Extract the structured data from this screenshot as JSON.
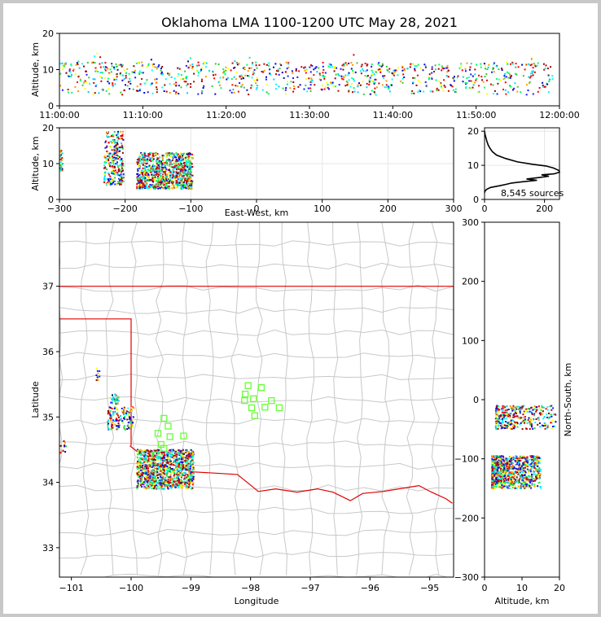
{
  "title": "Oklahoma LMA 1100-1200 UTC May 28, 2021",
  "chart_data": [
    {
      "panel": "time-height",
      "type": "scatter",
      "xlabel": "",
      "ylabel": "Altitude, km",
      "x_ticks": [
        "11:00:00",
        "11:10:00",
        "11:20:00",
        "11:30:00",
        "11:40:00",
        "11:50:00",
        "12:00:00"
      ],
      "y_ticks": [
        "0",
        "10",
        "20"
      ],
      "ylim": [
        0,
        20
      ],
      "source_altitude_range_km": [
        3,
        12
      ]
    },
    {
      "panel": "east-west-height",
      "type": "scatter",
      "xlabel": "East-West, km",
      "ylabel": "Altitude, km",
      "x_ticks": [
        "-300",
        "-200",
        "-100",
        "0",
        "100",
        "200",
        "300"
      ],
      "y_ticks": [
        "0",
        "10",
        "20"
      ],
      "xlim": [
        -300,
        300
      ],
      "ylim": [
        0,
        20
      ],
      "clusters": [
        {
          "x_range": [
            -300,
            -295
          ],
          "alt_range": [
            8,
            14
          ]
        },
        {
          "x_range": [
            -232,
            -202
          ],
          "alt_range": [
            4,
            19
          ]
        },
        {
          "x_range": [
            -182,
            -97
          ],
          "alt_range": [
            3,
            13
          ]
        }
      ]
    },
    {
      "panel": "altitude-histogram",
      "type": "line",
      "x_ticks": [
        "0",
        "200"
      ],
      "y_ticks": [
        "0",
        "10",
        "20"
      ],
      "xlim": [
        0,
        250
      ],
      "ylim": [
        0,
        21
      ],
      "annotation": "8,545 sources",
      "profile": [
        [
          0,
          20
        ],
        [
          2,
          19
        ],
        [
          5,
          18
        ],
        [
          8,
          17
        ],
        [
          12,
          16
        ],
        [
          18,
          15
        ],
        [
          26,
          14
        ],
        [
          40,
          13
        ],
        [
          70,
          12
        ],
        [
          110,
          11
        ],
        [
          160,
          10.3
        ],
        [
          205,
          9.8
        ],
        [
          230,
          9.2
        ],
        [
          248,
          8.5
        ],
        [
          250,
          8
        ],
        [
          232,
          7.5
        ],
        [
          190,
          7.2
        ],
        [
          215,
          6.8
        ],
        [
          180,
          6.4
        ],
        [
          140,
          6
        ],
        [
          175,
          5.6
        ],
        [
          130,
          5.2
        ],
        [
          90,
          4.8
        ],
        [
          70,
          4.4
        ],
        [
          50,
          4
        ],
        [
          20,
          3.5
        ],
        [
          8,
          3
        ],
        [
          2,
          2.5
        ],
        [
          0,
          2
        ]
      ]
    },
    {
      "panel": "plan-view",
      "type": "scatter",
      "xlabel": "Longitude",
      "ylabel": "Latitude",
      "x_ticks": [
        "−101",
        "−100",
        "−99",
        "−98",
        "−97",
        "−96",
        "−95"
      ],
      "y_ticks": [
        "33",
        "34",
        "35",
        "36",
        "37"
      ],
      "xlim": [
        -101.2,
        -94.6
      ],
      "ylim": [
        32.55,
        37.98
      ],
      "clusters": [
        {
          "lon": [
            -100.58,
            -100.52
          ],
          "lat": [
            35.55,
            35.75
          ]
        },
        {
          "lon": [
            -100.35,
            -100.2
          ],
          "lat": [
            35.2,
            35.35
          ]
        },
        {
          "lon": [
            -100.4,
            -99.95
          ],
          "lat": [
            34.8,
            35.15
          ]
        },
        {
          "lon": [
            -101.18,
            -101.08
          ],
          "lat": [
            34.45,
            34.65
          ]
        },
        {
          "lon": [
            -99.9,
            -98.95
          ],
          "lat": [
            33.9,
            34.5
          ]
        }
      ],
      "stations": [
        [
          -99.45,
          34.98
        ],
        [
          -99.38,
          34.86
        ],
        [
          -99.55,
          34.75
        ],
        [
          -99.35,
          34.7
        ],
        [
          -99.12,
          34.71
        ],
        [
          -99.5,
          34.58
        ],
        [
          -99.45,
          34.52
        ],
        [
          -98.04,
          35.48
        ],
        [
          -97.82,
          35.45
        ],
        [
          -98.09,
          35.35
        ],
        [
          -97.95,
          35.28
        ],
        [
          -98.1,
          35.25
        ],
        [
          -97.65,
          35.25
        ],
        [
          -97.98,
          35.14
        ],
        [
          -97.76,
          35.15
        ],
        [
          -97.52,
          35.14
        ],
        [
          -97.93,
          35.02
        ],
        [
          -99.6,
          34.42
        ]
      ]
    },
    {
      "panel": "altitude-north-south",
      "type": "scatter",
      "xlabel": "Altitude, km",
      "ylabel": "North-South, km",
      "x_ticks": [
        "0",
        "10",
        "20"
      ],
      "y_ticks": [
        "300",
        "200",
        "100",
        "0",
        "−100",
        "−200",
        "−300"
      ],
      "xlim": [
        0,
        20
      ],
      "ylim": [
        -300,
        300
      ],
      "clusters": [
        {
          "alt_range": [
            3,
            19
          ],
          "ns_range": [
            -50,
            -10
          ]
        },
        {
          "alt_range": [
            2,
            15
          ],
          "ns_range": [
            -150,
            -95
          ]
        }
      ]
    }
  ]
}
